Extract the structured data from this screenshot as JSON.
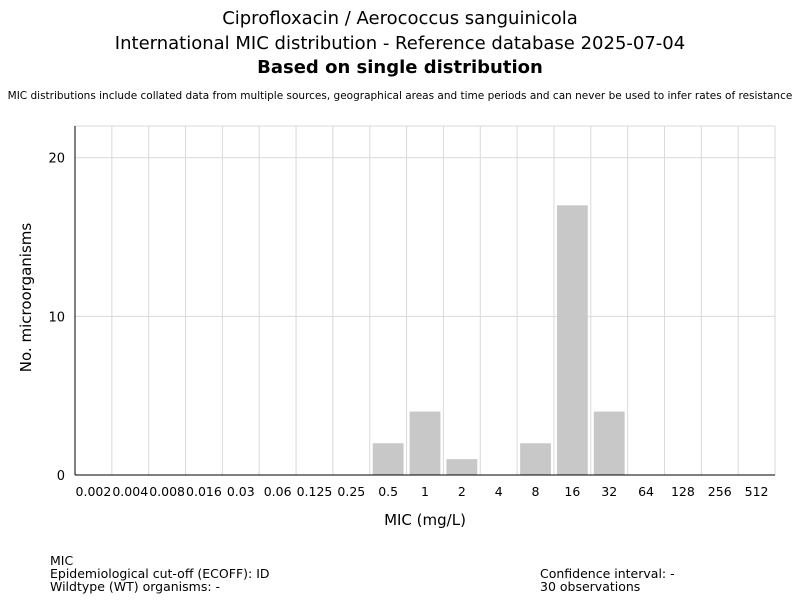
{
  "header": {
    "title_line1": "Ciprofloxacin / Aerococcus sanguinicola",
    "title_line2": "International MIC distribution - Reference database 2025-07-04",
    "title_line3": "Based on single distribution",
    "disclaimer": "MIC distributions include collated data from multiple sources, geographical areas and time periods and can never be used to infer rates of resistance"
  },
  "footer": {
    "mic_label": "MIC",
    "ecoff": "Epidemiological cut-off (ECOFF): ID",
    "wt": "Wildtype (WT) organisms:  -",
    "ci": "Confidence interval: -",
    "observations": "30 observations"
  },
  "chart_data": {
    "type": "bar",
    "title": "",
    "xlabel": "MIC (mg/L)",
    "ylabel": "No. microorganisms",
    "categories": [
      "0.002",
      "0.004",
      "0.008",
      "0.016",
      "0.03",
      "0.06",
      "0.125",
      "0.25",
      "0.5",
      "1",
      "2",
      "4",
      "8",
      "16",
      "32",
      "64",
      "128",
      "256",
      "512"
    ],
    "values": [
      0,
      0,
      0,
      0,
      0,
      0,
      0,
      0,
      2,
      4,
      1,
      0,
      2,
      17,
      4,
      0,
      0,
      0,
      0
    ],
    "ylim": [
      0,
      22
    ],
    "yticks": [
      0,
      10,
      20
    ],
    "grid": true,
    "bar_color": "#c8c8c8"
  }
}
